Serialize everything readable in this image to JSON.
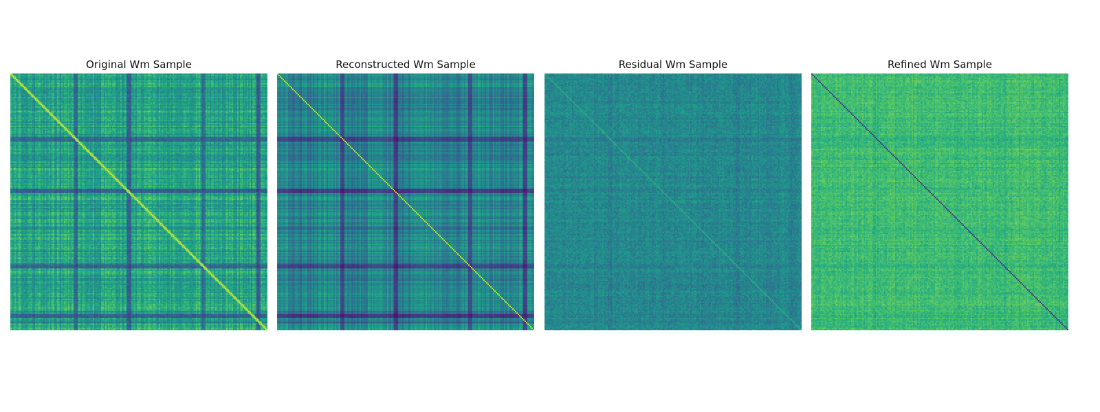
{
  "chart_data": [
    {
      "type": "heatmap",
      "title": "Original Wm Sample",
      "colormap": "viridis",
      "axes_visible": false,
      "diagonal": "bright"
    },
    {
      "type": "heatmap",
      "title": "Reconstructed Wm Sample",
      "colormap": "viridis",
      "axes_visible": false,
      "diagonal": "bright"
    },
    {
      "type": "heatmap",
      "title": "Residual Wm Sample",
      "colormap": "viridis",
      "axes_visible": false,
      "diagonal": "faint"
    },
    {
      "type": "heatmap",
      "title": "Refined Wm Sample",
      "colormap": "viridis",
      "axes_visible": false,
      "diagonal": "dark"
    }
  ]
}
